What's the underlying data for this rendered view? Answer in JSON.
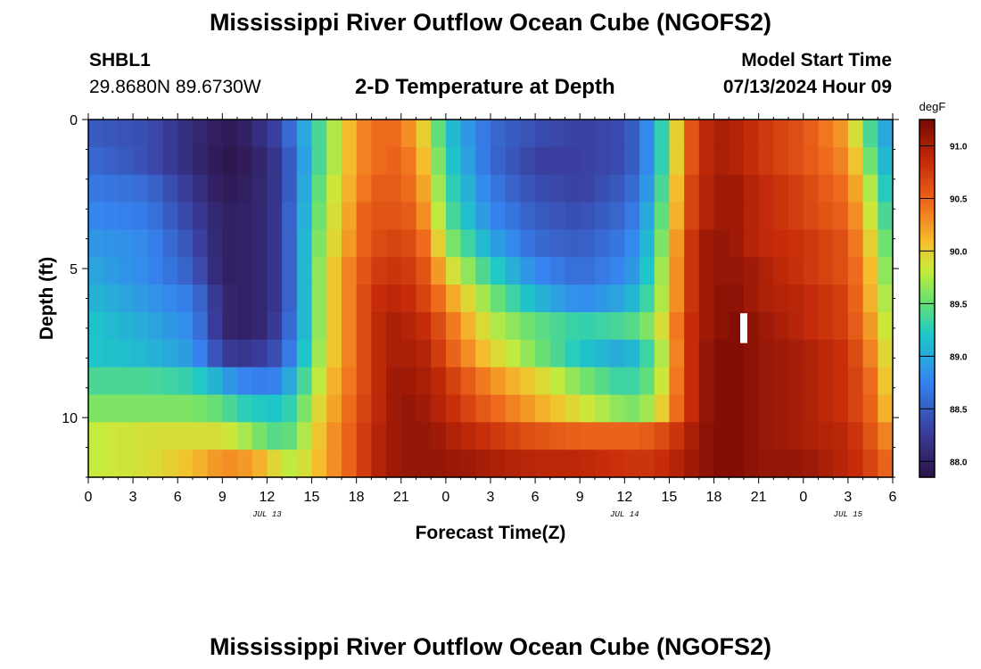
{
  "page": {
    "title_top": "Mississippi River Outflow Ocean Cube (NGOFS2)",
    "title_bottom": "Mississippi River Outflow Ocean Cube (NGOFS2)",
    "station_id": "SHBL1",
    "station_coords": "29.8680N  89.6730W",
    "subtitle": "2-D Temperature at Depth",
    "model_start_label": "Model Start Time",
    "model_start_value": "07/13/2024 Hour 09"
  },
  "chart_data": {
    "type": "heatmap",
    "title": "2-D Temperature at Depth",
    "xlabel": "Forecast Time(Z)",
    "ylabel": "Depth (ft)",
    "x_unit": "hours from 2024-07-13 00Z",
    "x_range": [
      0,
      54
    ],
    "x_tick_values": [
      0,
      3,
      6,
      9,
      12,
      15,
      18,
      21,
      24,
      27,
      30,
      33,
      36,
      39,
      42,
      45,
      48,
      51,
      54
    ],
    "x_tick_labels": [
      "0",
      "3",
      "6",
      "9",
      "12",
      "15",
      "18",
      "21",
      "0",
      "3",
      "6",
      "9",
      "12",
      "15",
      "18",
      "21",
      "0",
      "3",
      "6"
    ],
    "day_labels": [
      {
        "x": 12,
        "text": "JUL 13"
      },
      {
        "x": 36,
        "text": "JUL 14"
      },
      {
        "x": 51,
        "text": "JUL 15"
      }
    ],
    "y_range": [
      0,
      12
    ],
    "y_inverted": true,
    "y_tick_values": [
      0,
      5,
      10
    ],
    "y_tick_labels": [
      "0",
      "5",
      "10"
    ],
    "colorbar": {
      "unit": "degF",
      "min": 87.85,
      "max": 91.25,
      "tick_values": [
        88.0,
        88.5,
        89.0,
        89.5,
        90.0,
        90.5,
        91.0
      ],
      "tick_labels": [
        "88.0",
        "88.5",
        "89.0",
        "89.5",
        "90.0",
        "90.5",
        "91.0"
      ]
    },
    "depth_levels_ft": [
      0,
      1,
      2,
      3,
      4,
      5,
      6,
      7,
      8,
      9,
      10,
      11,
      12
    ],
    "key_times_h": [
      0,
      4,
      7,
      9,
      10,
      12,
      13,
      14,
      15,
      16,
      17,
      18,
      19,
      20,
      21,
      22,
      23,
      24,
      27,
      30,
      33,
      36,
      37,
      38,
      39,
      40,
      41,
      42,
      43,
      44,
      45,
      48,
      51,
      52,
      53,
      54
    ],
    "temperature_degF_by_depth": [
      [
        88.5,
        88.4,
        88.1,
        87.95,
        87.95,
        88.2,
        88.4,
        88.8,
        89.2,
        89.6,
        89.9,
        90.3,
        90.4,
        90.5,
        90.4,
        90.2,
        89.8,
        89.2,
        88.6,
        88.4,
        88.3,
        88.4,
        88.6,
        89.0,
        89.6,
        90.4,
        90.8,
        91.0,
        91.0,
        90.9,
        90.8,
        90.6,
        90.2,
        89.6,
        89.2,
        88.8
      ],
      [
        88.6,
        88.4,
        88.1,
        87.9,
        87.9,
        88.1,
        88.3,
        88.7,
        89.2,
        89.6,
        89.9,
        90.3,
        90.4,
        90.5,
        90.5,
        90.3,
        89.9,
        89.3,
        88.6,
        88.3,
        88.3,
        88.4,
        88.6,
        89.0,
        89.6,
        90.4,
        90.8,
        91.0,
        91.0,
        90.9,
        90.8,
        90.6,
        90.3,
        89.8,
        89.3,
        88.9
      ],
      [
        88.7,
        88.6,
        88.2,
        87.95,
        87.95,
        88.1,
        88.3,
        88.7,
        89.3,
        89.7,
        90.0,
        90.3,
        90.5,
        90.6,
        90.5,
        90.4,
        90.0,
        89.4,
        88.7,
        88.4,
        88.3,
        88.5,
        88.7,
        89.1,
        89.7,
        90.5,
        90.9,
        91.0,
        91.1,
        91.0,
        90.9,
        90.7,
        90.4,
        90.0,
        89.5,
        89.0
      ],
      [
        88.8,
        88.7,
        88.3,
        88.0,
        88.0,
        88.1,
        88.3,
        88.8,
        89.3,
        89.8,
        90.0,
        90.4,
        90.6,
        90.6,
        90.6,
        90.5,
        90.1,
        89.5,
        88.8,
        88.5,
        88.4,
        88.6,
        88.8,
        89.2,
        89.8,
        90.5,
        90.9,
        91.0,
        91.1,
        91.0,
        90.9,
        90.7,
        90.5,
        90.1,
        89.6,
        89.2
      ],
      [
        88.9,
        88.8,
        88.4,
        88.0,
        88.0,
        88.1,
        88.3,
        88.8,
        89.4,
        89.8,
        90.1,
        90.4,
        90.6,
        90.7,
        90.7,
        90.6,
        90.3,
        89.7,
        89.0,
        88.6,
        88.5,
        88.7,
        88.9,
        89.3,
        89.9,
        90.6,
        91.0,
        91.1,
        91.1,
        91.0,
        90.9,
        90.8,
        90.6,
        90.2,
        89.8,
        89.3
      ],
      [
        89.0,
        88.8,
        88.5,
        88.0,
        88.0,
        88.1,
        88.3,
        88.8,
        89.4,
        89.9,
        90.2,
        90.5,
        90.7,
        90.8,
        90.8,
        90.7,
        90.5,
        90.0,
        89.3,
        88.8,
        88.6,
        88.8,
        89.0,
        89.4,
        90.0,
        90.6,
        91.0,
        91.1,
        91.1,
        91.1,
        91.0,
        90.8,
        90.6,
        90.3,
        89.9,
        89.4
      ],
      [
        89.1,
        88.9,
        88.7,
        88.1,
        88.0,
        88.1,
        88.3,
        88.8,
        89.4,
        89.9,
        90.2,
        90.5,
        90.8,
        90.9,
        90.9,
        90.8,
        90.6,
        90.3,
        89.6,
        89.1,
        88.8,
        89.0,
        89.2,
        89.5,
        90.0,
        90.6,
        91.0,
        91.1,
        91.2,
        91.1,
        91.0,
        90.9,
        90.7,
        90.3,
        90.0,
        89.5
      ],
      [
        89.2,
        89.0,
        88.8,
        88.1,
        88.0,
        88.1,
        88.4,
        88.8,
        89.4,
        89.9,
        90.2,
        90.5,
        90.8,
        91.0,
        91.0,
        90.9,
        90.8,
        90.5,
        89.8,
        89.5,
        89.3,
        89.4,
        89.5,
        89.7,
        90.1,
        90.7,
        91.0,
        91.1,
        91.2,
        91.2,
        91.1,
        90.9,
        90.7,
        90.4,
        90.1,
        89.6
      ],
      [
        89.2,
        89.1,
        88.9,
        88.3,
        88.2,
        88.3,
        88.5,
        88.9,
        89.5,
        89.9,
        90.2,
        90.5,
        90.8,
        91.0,
        91.0,
        91.0,
        90.9,
        90.6,
        90.0,
        89.6,
        89.2,
        89.0,
        89.2,
        89.5,
        90.0,
        90.7,
        91.0,
        91.2,
        91.2,
        91.2,
        91.1,
        91.0,
        90.8,
        90.5,
        90.2,
        89.7
      ],
      [
        89.4,
        89.4,
        89.3,
        89.0,
        88.8,
        88.7,
        88.8,
        89.2,
        89.6,
        90.0,
        90.3,
        90.5,
        90.8,
        91.0,
        91.1,
        91.0,
        91.0,
        90.8,
        90.3,
        90.0,
        89.6,
        89.3,
        89.4,
        89.6,
        90.1,
        90.7,
        91.0,
        91.2,
        91.2,
        91.2,
        91.1,
        91.0,
        90.8,
        90.6,
        90.3,
        89.8
      ],
      [
        89.6,
        89.6,
        89.6,
        89.5,
        89.3,
        89.2,
        89.2,
        89.4,
        89.8,
        90.1,
        90.3,
        90.6,
        90.8,
        91.0,
        91.1,
        91.1,
        91.0,
        90.9,
        90.5,
        90.2,
        89.9,
        89.6,
        89.6,
        89.8,
        90.2,
        90.7,
        91.0,
        91.2,
        91.2,
        91.2,
        91.1,
        91.0,
        90.8,
        90.6,
        90.4,
        89.9
      ],
      [
        89.8,
        89.9,
        89.9,
        89.9,
        89.8,
        89.5,
        89.4,
        89.6,
        89.9,
        90.2,
        90.4,
        90.6,
        90.9,
        91.0,
        91.1,
        91.1,
        91.1,
        91.0,
        90.8,
        90.6,
        90.5,
        90.5,
        90.5,
        90.6,
        90.7,
        90.9,
        91.1,
        91.2,
        91.2,
        91.2,
        91.1,
        91.0,
        90.9,
        90.7,
        90.5,
        90.2
      ],
      [
        89.8,
        89.9,
        90.1,
        90.3,
        90.3,
        90.1,
        89.8,
        89.8,
        90.0,
        90.2,
        90.4,
        90.6,
        90.9,
        91.0,
        91.1,
        91.1,
        91.1,
        91.1,
        91.0,
        90.9,
        90.9,
        90.8,
        90.8,
        90.8,
        90.9,
        91.0,
        91.1,
        91.2,
        91.2,
        91.2,
        91.1,
        91.1,
        90.9,
        90.8,
        90.6,
        90.4
      ]
    ],
    "marker": {
      "x": 44.0,
      "depth_top": 6.5,
      "depth_bottom": 7.5
    }
  }
}
